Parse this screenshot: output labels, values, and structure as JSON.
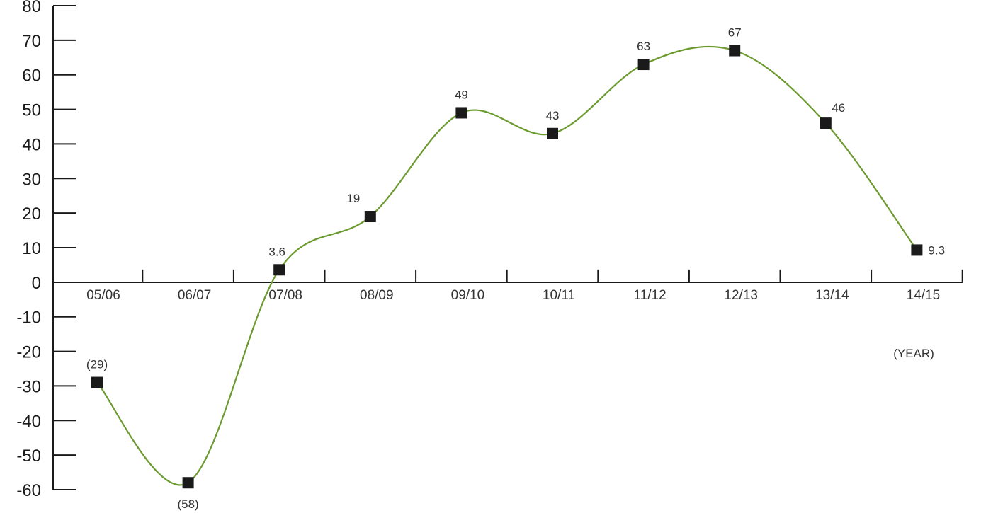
{
  "chart_data": {
    "type": "line",
    "title": "",
    "xlabel": "(YEAR)",
    "ylabel": "",
    "categories": [
      "05/06",
      "06/07",
      "07/08",
      "08/09",
      "09/10",
      "10/11",
      "11/12",
      "12/13",
      "13/14",
      "14/15"
    ],
    "series": [
      {
        "values": [
          -29,
          -58,
          3.6,
          19,
          49,
          43,
          63,
          67,
          46,
          9.3
        ],
        "labels": [
          "(29)",
          "(58)",
          "3.6",
          "19",
          "49",
          "43",
          "63",
          "67",
          "46",
          "9.3"
        ],
        "line_color": "#6b9a2e",
        "marker_color": "#1a1a1a",
        "marker": "square"
      }
    ],
    "ylim": [
      -60,
      80
    ],
    "yticks": [
      80,
      70,
      60,
      50,
      40,
      30,
      20,
      10,
      0,
      -10,
      -20,
      -30,
      -40,
      -50,
      -60
    ],
    "grid": false,
    "legend": "none",
    "smooth": true
  }
}
